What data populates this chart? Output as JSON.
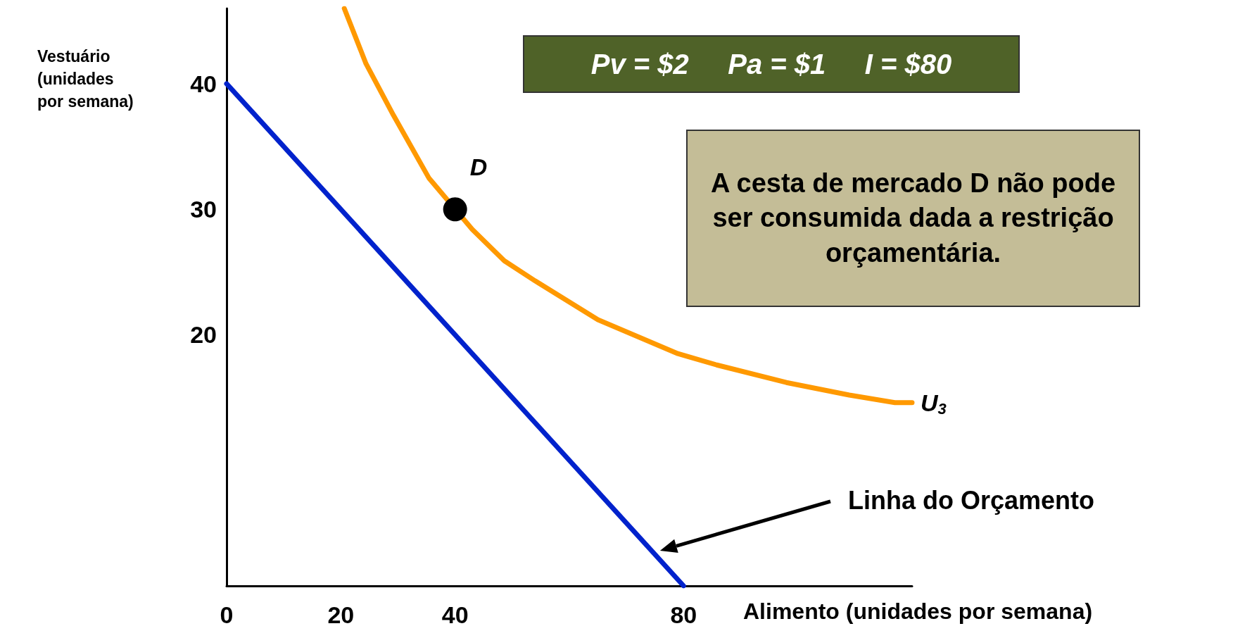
{
  "chart_data": {
    "type": "line",
    "xlabel": "Alimento (unidades por semana)",
    "ylabel": "Vestuário (unidades por semana)",
    "xlim": [
      0,
      120
    ],
    "ylim": [
      0,
      46
    ],
    "xticks": [
      0,
      20,
      40,
      80
    ],
    "yticks": [
      20,
      30,
      40
    ],
    "grid": false,
    "legend": false,
    "line_style": "solid",
    "annotations": [
      "Pv = $2     Pa = $1     I = $80",
      "A cesta de mercado D não pode ser consumida dada a restrição orçamentária."
    ],
    "series": [
      {
        "name": "Linha do Orçamento",
        "color": "#0022cc",
        "marker": "none",
        "x": [
          0,
          80
        ],
        "values": [
          40,
          0
        ]
      },
      {
        "name": "U$_{3}$",
        "color": "#ff9900",
        "marker": "none",
        "x": [
          20.6,
          24.4,
          29.2,
          35.4,
          43,
          48.6,
          54,
          65,
          79,
          85.8,
          98,
          109,
          117,
          120
        ],
        "values": [
          46,
          41.6,
          37.5,
          32.5,
          28.4,
          25.9,
          24.3,
          21.2,
          18.5,
          17.6,
          16.2,
          15.2,
          14.6,
          14.6
        ]
      },
      {
        "name": "D",
        "type": "scatter",
        "color": "#000000",
        "marker": "circle",
        "x": [
          40
        ],
        "values": [
          30
        ]
      }
    ]
  }
}
